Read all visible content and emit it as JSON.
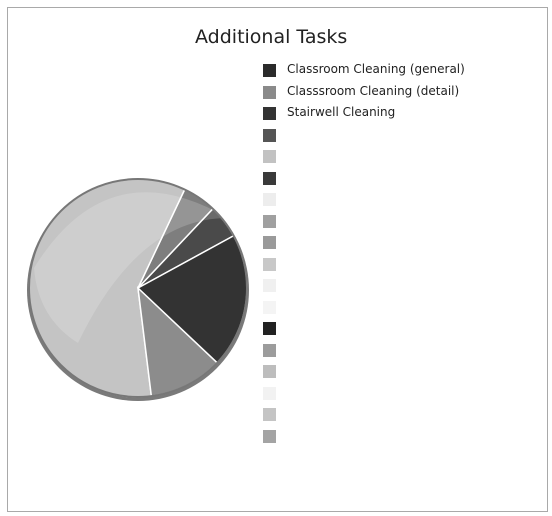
{
  "chart_data": {
    "type": "pie",
    "title": "Additional Tasks",
    "legend_position": "right",
    "series": [
      {
        "name": "Classroom Cleaning (general)",
        "color": "#2b2b2b"
      },
      {
        "name": "Classsroom Cleaning (detail)",
        "color": "#8a8a8a"
      },
      {
        "name": "Stairwell Cleaning",
        "color": "#333333"
      },
      {
        "name": "",
        "color": "#555555"
      },
      {
        "name": "",
        "color": "#c2c2c2"
      },
      {
        "name": "",
        "color": "#3a3a3a"
      },
      {
        "name": "",
        "color": "#ededed"
      },
      {
        "name": "",
        "color": "#a0a0a0"
      },
      {
        "name": "",
        "color": "#9a9a9a"
      },
      {
        "name": "",
        "color": "#c8c8c8"
      },
      {
        "name": "",
        "color": "#f0f0f0"
      },
      {
        "name": "",
        "color": "#f4f4f4"
      },
      {
        "name": "",
        "color": "#222222"
      },
      {
        "name": "",
        "color": "#9c9c9c"
      },
      {
        "name": "",
        "color": "#bdbdbd"
      },
      {
        "name": "",
        "color": "#f2f2f2"
      },
      {
        "name": "",
        "color": "#c4c4c4"
      },
      {
        "name": "",
        "color": "#a4a4a4"
      }
    ],
    "slices": [
      {
        "value": 0.05,
        "color": "#4a4a4a"
      },
      {
        "value": 0.05,
        "color": "#7e7e7e"
      },
      {
        "value": 0.59,
        "color": "#c4c4c4"
      },
      {
        "value": 0.11,
        "color": "#8c8c8c"
      },
      {
        "value": 0.2,
        "color": "#333333"
      }
    ]
  }
}
